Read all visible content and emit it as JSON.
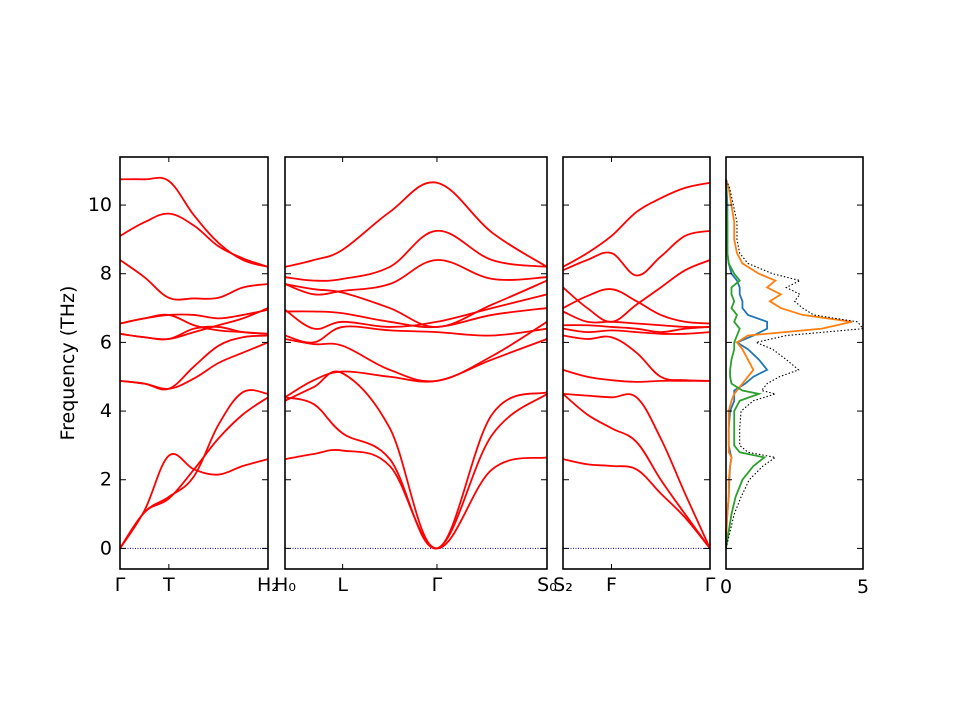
{
  "chart_data": {
    "type": "line",
    "title": "",
    "ylabel": "Frequency (THz)",
    "ylim": [
      -0.6,
      11.4
    ],
    "yticks": [
      0,
      2,
      4,
      6,
      8,
      10
    ],
    "grid": false,
    "band_color": "#ff0000",
    "zero_line_color": "#0000cc",
    "panels": [
      {
        "segments": [
          {
            "x_labels": [
              "Γ",
              "T",
              "H₂"
            ],
            "x_tick_positions": [
              0,
              0.33,
              1
            ]
          }
        ]
      },
      {
        "segments": [
          {
            "x_labels": [
              "H₀",
              "L",
              "Γ",
              "S₀"
            ],
            "x_tick_positions": [
              0,
              0.22,
              0.58,
              1
            ]
          }
        ]
      },
      {
        "segments": [
          {
            "x_labels": [
              "S₂",
              "F",
              "Γ"
            ],
            "x_tick_positions": [
              0,
              0.33,
              1
            ]
          }
        ]
      }
    ],
    "bands": {
      "panel_1": {
        "x": [
          0,
          0.165,
          0.33,
          0.5,
          0.665,
          0.83,
          1
        ],
        "series": [
          {
            "values": [
              0,
              1.1,
              2.7,
              2.3,
              2.15,
              2.4,
              2.6
            ]
          },
          {
            "values": [
              0,
              1.05,
              1.45,
              2.3,
              3.2,
              3.9,
              4.4
            ]
          },
          {
            "values": [
              0,
              1.05,
              1.5,
              2.1,
              3.6,
              4.55,
              4.5
            ]
          },
          {
            "values": [
              4.88,
              4.8,
              4.65,
              5.3,
              5.9,
              6.15,
              6.2
            ]
          },
          {
            "values": [
              4.88,
              4.8,
              4.65,
              4.95,
              5.4,
              5.7,
              6.0
            ]
          },
          {
            "values": [
              6.25,
              6.15,
              6.1,
              6.4,
              6.45,
              6.3,
              6.25
            ]
          },
          {
            "values": [
              6.25,
              6.15,
              6.1,
              6.3,
              6.5,
              6.7,
              7.0
            ]
          },
          {
            "values": [
              6.55,
              6.7,
              6.8,
              6.8,
              6.7,
              6.8,
              6.95
            ]
          },
          {
            "values": [
              6.55,
              6.7,
              6.8,
              6.5,
              6.35,
              6.3,
              6.25
            ]
          },
          {
            "values": [
              8.4,
              7.9,
              7.3,
              7.28,
              7.3,
              7.6,
              7.7
            ]
          },
          {
            "values": [
              9.1,
              9.5,
              9.75,
              9.4,
              8.8,
              8.45,
              8.2
            ]
          },
          {
            "values": [
              10.75,
              10.75,
              10.7,
              9.7,
              8.9,
              8.4,
              8.2
            ]
          }
        ]
      },
      "panel_2": {
        "x": [
          0,
          0.11,
          0.22,
          0.4,
          0.58,
          0.79,
          1
        ],
        "series": [
          {
            "values": [
              2.6,
              2.75,
              2.85,
              2.4,
              0,
              2.3,
              2.65
            ]
          },
          {
            "values": [
              4.4,
              4.2,
              3.35,
              2.6,
              0,
              3.3,
              4.5
            ]
          },
          {
            "values": [
              4.3,
              4.7,
              5.1,
              3.5,
              0,
              3.9,
              4.55
            ]
          },
          {
            "values": [
              4.4,
              4.9,
              5.15,
              5.0,
              4.88,
              5.5,
              6.1
            ]
          },
          {
            "values": [
              6.1,
              5.95,
              5.9,
              5.2,
              4.88,
              5.6,
              6.6
            ]
          },
          {
            "values": [
              6.2,
              6.0,
              6.45,
              6.35,
              6.3,
              6.2,
              6.4
            ]
          },
          {
            "values": [
              6.9,
              6.9,
              6.85,
              6.6,
              6.45,
              6.8,
              7.0
            ]
          },
          {
            "values": [
              6.95,
              6.4,
              6.6,
              6.45,
              6.6,
              7.0,
              7.4
            ]
          },
          {
            "values": [
              7.7,
              7.55,
              7.45,
              7.0,
              6.45,
              7.1,
              7.8
            ]
          },
          {
            "values": [
              7.7,
              7.4,
              7.5,
              7.7,
              8.4,
              7.85,
              7.9
            ]
          },
          {
            "values": [
              7.9,
              7.8,
              7.85,
              8.2,
              9.25,
              8.4,
              8.2
            ]
          },
          {
            "values": [
              8.2,
              8.4,
              8.7,
              9.8,
              10.65,
              9.2,
              8.2
            ]
          }
        ]
      },
      "panel_3": {
        "x": [
          0,
          0.165,
          0.33,
          0.5,
          0.665,
          0.83,
          1
        ],
        "series": [
          {
            "values": [
              2.6,
              2.45,
              2.4,
              2.3,
              1.6,
              0.9,
              0
            ]
          },
          {
            "values": [
              4.5,
              3.9,
              3.5,
              3.1,
              2.0,
              1.0,
              0
            ]
          },
          {
            "values": [
              4.5,
              4.45,
              4.4,
              4.4,
              3.2,
              1.6,
              0
            ]
          },
          {
            "values": [
              5.2,
              5.0,
              4.9,
              4.85,
              4.88,
              4.88,
              4.88
            ]
          },
          {
            "values": [
              6.2,
              6.1,
              6.15,
              5.7,
              5.0,
              4.9,
              4.88
            ]
          },
          {
            "values": [
              6.4,
              6.3,
              6.35,
              6.3,
              6.25,
              6.25,
              6.3
            ]
          },
          {
            "values": [
              6.5,
              6.5,
              6.45,
              6.4,
              6.3,
              6.4,
              6.45
            ]
          },
          {
            "values": [
              6.9,
              6.6,
              6.6,
              6.55,
              6.5,
              6.45,
              6.45
            ]
          },
          {
            "values": [
              7.0,
              7.35,
              7.55,
              7.2,
              6.8,
              6.6,
              6.55
            ]
          },
          {
            "values": [
              7.6,
              7.0,
              6.6,
              7.1,
              7.6,
              8.1,
              8.4
            ]
          },
          {
            "values": [
              8.1,
              8.4,
              8.6,
              7.95,
              8.5,
              9.1,
              9.25
            ]
          },
          {
            "values": [
              8.2,
              8.6,
              9.1,
              9.8,
              10.2,
              10.5,
              10.65
            ]
          }
        ]
      }
    },
    "dos": {
      "xlim": [
        0,
        5
      ],
      "xticks": [
        0,
        5
      ],
      "y": [
        0,
        0.5,
        1.0,
        1.5,
        2.0,
        2.4,
        2.65,
        2.8,
        3.0,
        3.5,
        4.0,
        4.3,
        4.5,
        4.6,
        4.8,
        5.0,
        5.2,
        5.5,
        5.8,
        6.0,
        6.2,
        6.4,
        6.6,
        6.8,
        7.0,
        7.2,
        7.4,
        7.6,
        7.8,
        8.0,
        8.3,
        8.6,
        9.0,
        9.5,
        10.0,
        10.5,
        10.75
      ],
      "series": [
        {
          "color": "#1f77b4",
          "values": [
            0,
            0.0,
            0.05,
            0.1,
            0.12,
            0.15,
            0.2,
            0.15,
            0.1,
            0.1,
            0.15,
            0.3,
            0.3,
            0.3,
            0.7,
            1.0,
            1.5,
            1.2,
            0.8,
            0.4,
            1.0,
            1.5,
            1.5,
            0.8,
            0.6,
            0.6,
            0.5,
            0.5,
            0.4,
            0.2,
            0.1,
            0.05,
            0.05,
            0.05,
            0.05,
            0.02,
            0
          ]
        },
        {
          "color": "#ff7f0e",
          "values": [
            0,
            0.02,
            0.05,
            0.1,
            0.1,
            0.15,
            0.2,
            0.1,
            0.1,
            0.1,
            0.1,
            0.2,
            0.3,
            0.4,
            0.6,
            0.8,
            1.0,
            0.8,
            0.6,
            0.4,
            0.8,
            3.5,
            4.6,
            2.8,
            2.0,
            1.6,
            2.0,
            1.5,
            1.8,
            1.2,
            0.6,
            0.4,
            0.3,
            0.3,
            0.2,
            0.1,
            0
          ]
        },
        {
          "color": "#2ca02c",
          "values": [
            0,
            0.1,
            0.2,
            0.35,
            0.6,
            1.0,
            1.4,
            0.5,
            0.3,
            0.3,
            0.3,
            0.5,
            1.2,
            0.6,
            0.2,
            0.15,
            0.15,
            0.2,
            0.3,
            0.3,
            0.4,
            0.5,
            0.3,
            0.4,
            0.2,
            0.3,
            0.2,
            0.2,
            0.5,
            0.3,
            0.1,
            0.05,
            0.05,
            0.05,
            0.02,
            0.01,
            0
          ]
        },
        {
          "color": "#000000",
          "dashed": true,
          "values": [
            0,
            0.15,
            0.3,
            0.55,
            0.85,
            1.35,
            1.8,
            0.8,
            0.5,
            0.5,
            0.55,
            1.0,
            1.8,
            1.3,
            1.5,
            1.95,
            2.65,
            2.2,
            1.7,
            1.1,
            2.2,
            5.0,
            4.8,
            3.2,
            2.8,
            2.5,
            2.7,
            2.2,
            2.7,
            1.7,
            0.8,
            0.5,
            0.4,
            0.4,
            0.27,
            0.13,
            0
          ]
        }
      ]
    }
  }
}
